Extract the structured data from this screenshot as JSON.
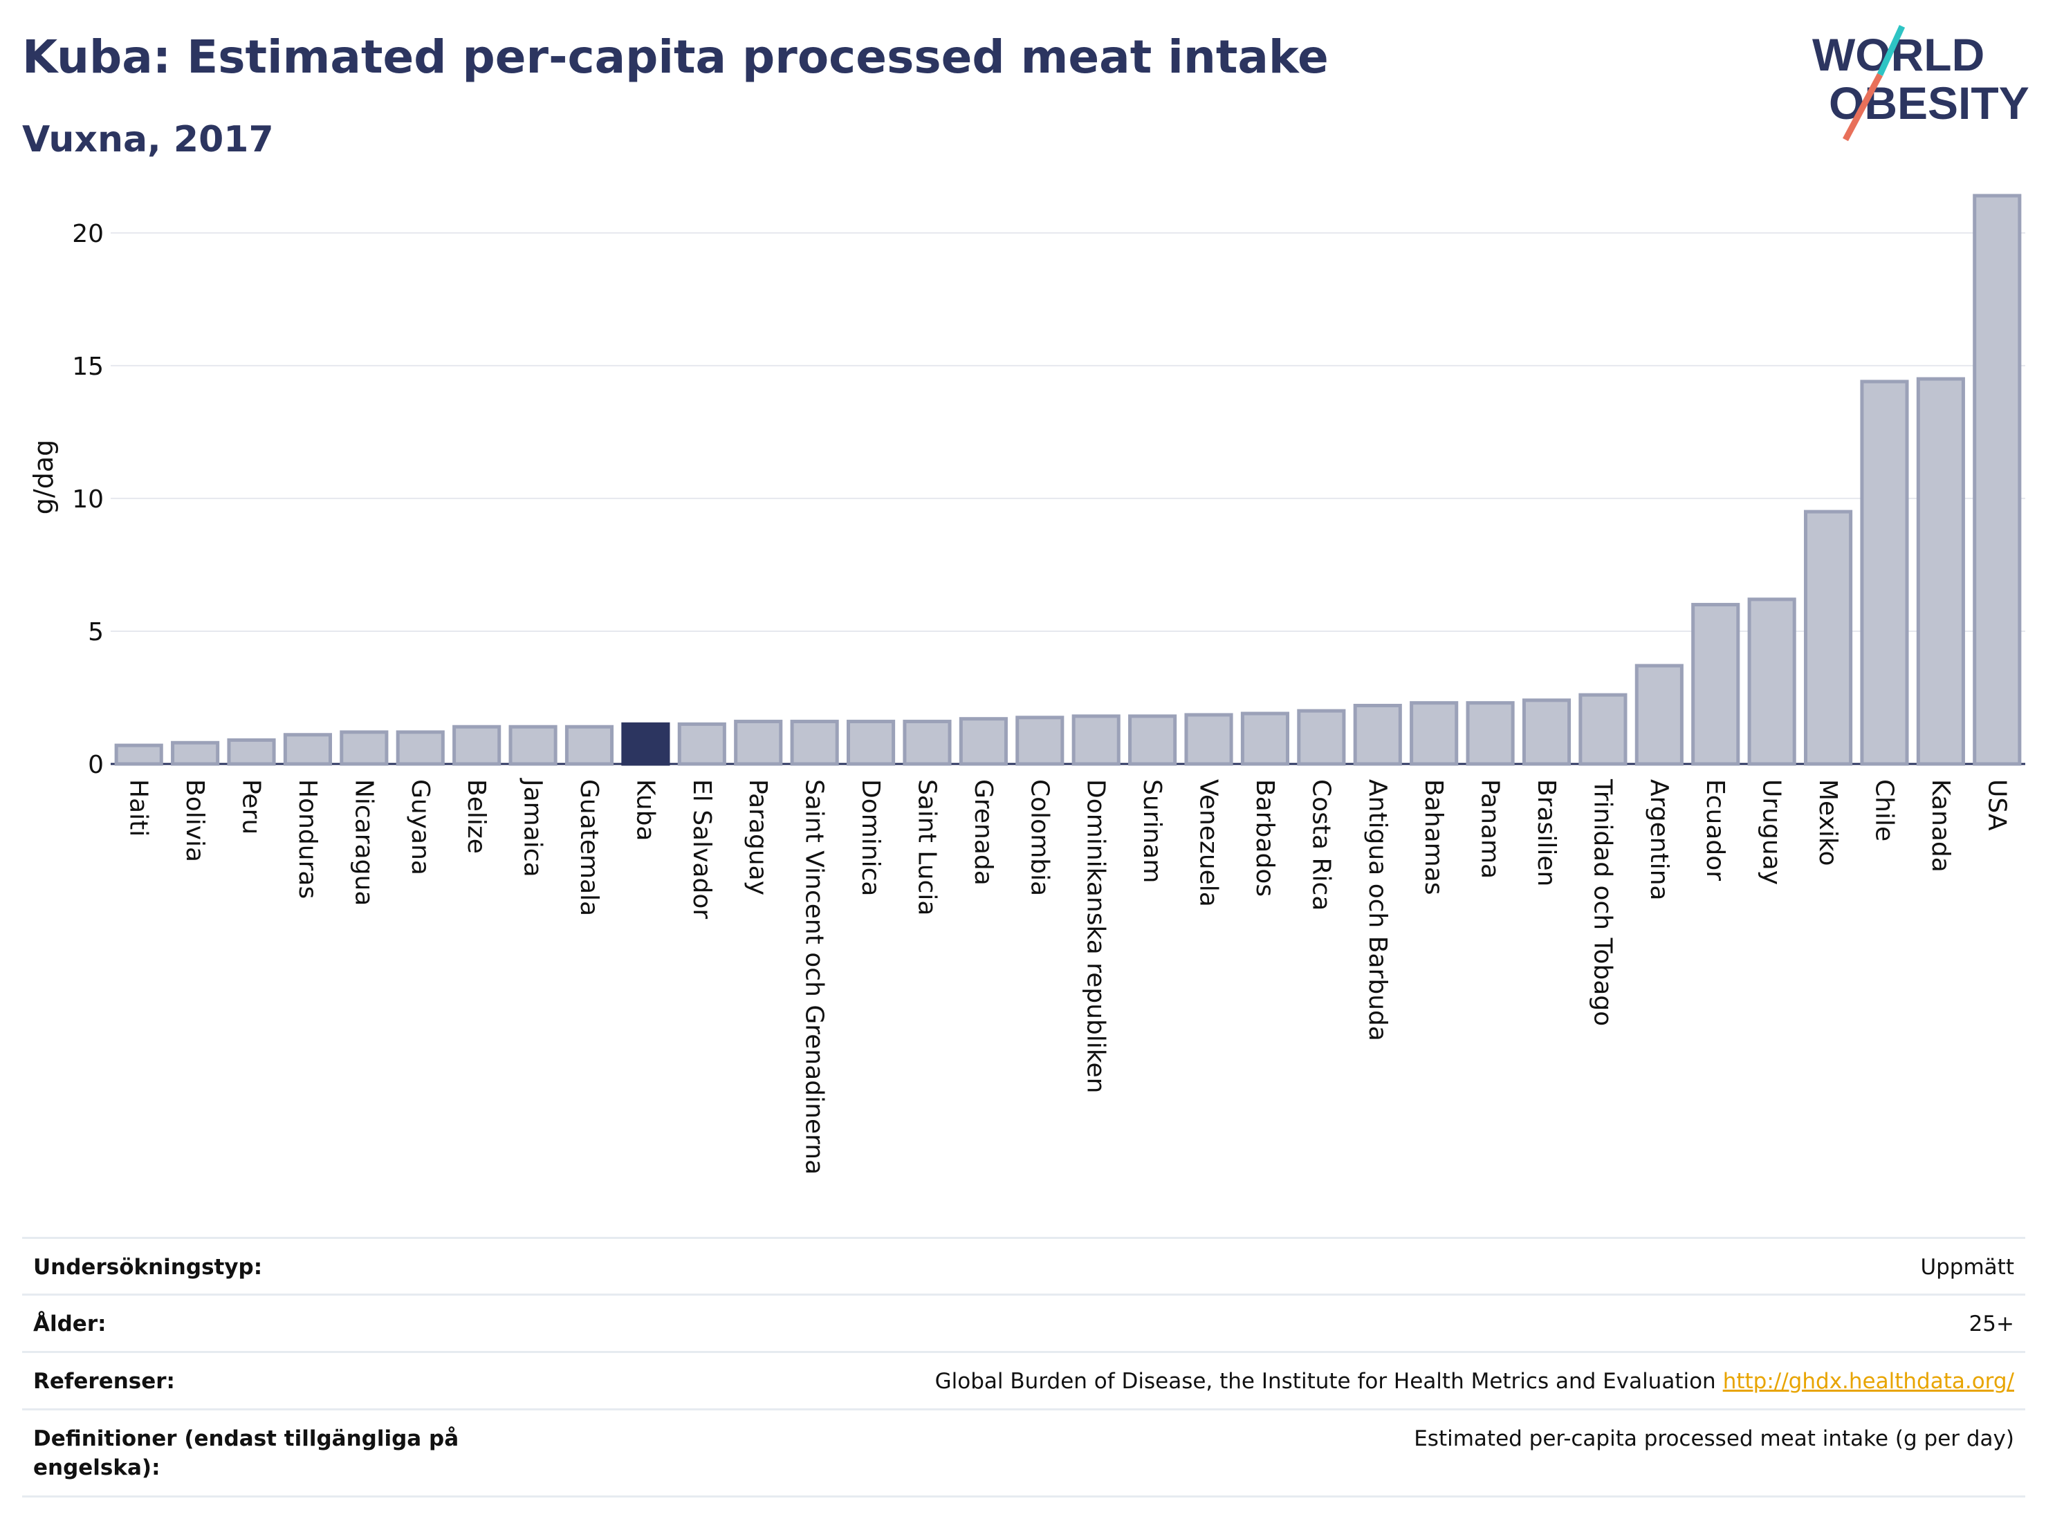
{
  "header": {
    "title": "Kuba: Estimated per-capita processed meat intake",
    "subtitle": "Vuxna, 2017"
  },
  "logo": {
    "line1": "WORLD",
    "line2": "OBESITY",
    "accent_teal": "#2ec4c4",
    "accent_coral": "#e8705a"
  },
  "colors": {
    "bar": "#bfc3d0",
    "bar_border": "#9ba1b8",
    "highlight": "#2c3560",
    "grid": "#e6e8ee",
    "axis": "#2c3560"
  },
  "chart_data": {
    "type": "bar",
    "ylabel": "g/dag",
    "ylim": [
      0,
      22
    ],
    "yticks": [
      0,
      5,
      10,
      15,
      20
    ],
    "highlight": "Kuba",
    "categories": [
      "Haiti",
      "Bolivia",
      "Peru",
      "Honduras",
      "Nicaragua",
      "Guyana",
      "Belize",
      "Jamaica",
      "Guatemala",
      "Kuba",
      "El Salvador",
      "Paraguay",
      "Saint Vincent och Grenadinerna",
      "Dominica",
      "Saint Lucia",
      "Grenada",
      "Colombia",
      "Dominikanska republiken",
      "Surinam",
      "Venezuela",
      "Barbados",
      "Costa Rica",
      "Antigua och Barbuda",
      "Bahamas",
      "Panama",
      "Brasilien",
      "Trinidad och Tobago",
      "Argentina",
      "Ecuador",
      "Uruguay",
      "Mexiko",
      "Chile",
      "Kanada",
      "USA"
    ],
    "values": [
      0.7,
      0.8,
      0.9,
      1.1,
      1.2,
      1.2,
      1.4,
      1.4,
      1.4,
      1.5,
      1.5,
      1.6,
      1.6,
      1.6,
      1.6,
      1.7,
      1.75,
      1.8,
      1.8,
      1.85,
      1.9,
      2.0,
      2.2,
      2.3,
      2.3,
      2.4,
      2.6,
      3.7,
      6.0,
      6.2,
      9.5,
      14.4,
      14.5,
      21.4
    ]
  },
  "info": {
    "rows": [
      {
        "label": "Undersökningstyp:",
        "value": "Uppmätt"
      },
      {
        "label": "Ålder:",
        "value": "25+"
      },
      {
        "label": "Referenser:",
        "value": "Global Burden of Disease, the Institute for Health Metrics and Evaluation",
        "link": "http://ghdx.healthdata.org/"
      },
      {
        "label": "Definitioner (endast tillgängliga på engelska):",
        "value": "Estimated per-capita processed meat intake (g per day)"
      }
    ]
  }
}
